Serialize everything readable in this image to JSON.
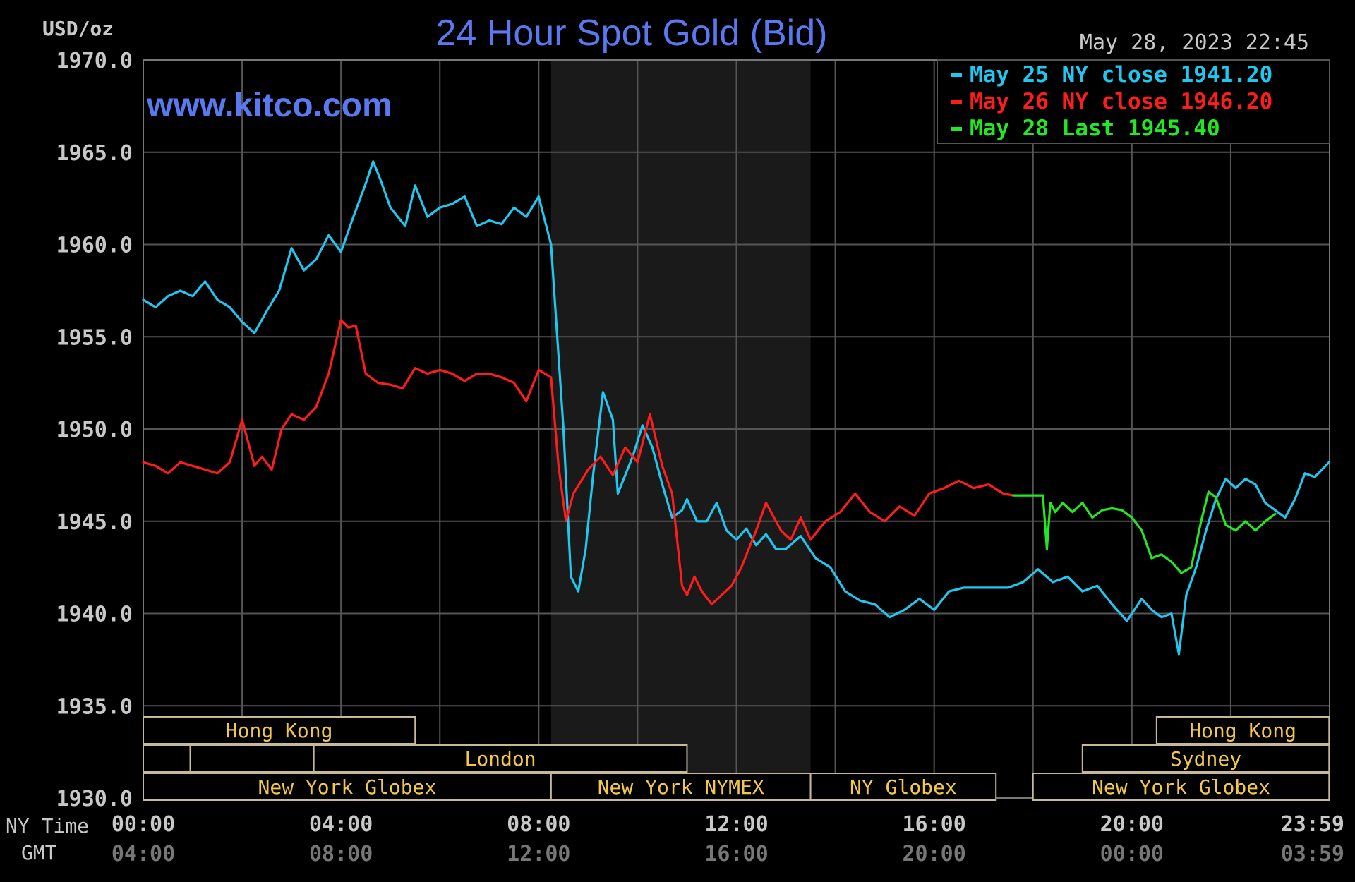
{
  "title": "24 Hour Spot Gold (Bid)",
  "unit_label": "USD/oz",
  "timestamp": "May 28, 2023 22:45",
  "watermark": "www.kitco.com",
  "colors": {
    "background": "#000000",
    "grid": "#555555",
    "title": "#5a78f0",
    "axis_text": "#c8c8c8",
    "gmt_text": "#777777",
    "session_text": "#f2c84b",
    "session_border": "#c8b89a",
    "ny_session_shade": "#1a1a1a",
    "series_may25": "#1fc8f0",
    "series_may26": "#ff1c1c",
    "series_may28": "#22e822"
  },
  "chart_data": {
    "type": "line",
    "title": "24 Hour Spot Gold (Bid)",
    "ylabel": "USD/oz",
    "ylim": [
      1930.0,
      1970.0
    ],
    "yticks": [
      "1970.0",
      "1965.0",
      "1960.0",
      "1955.0",
      "1950.0",
      "1945.0",
      "1940.0",
      "1935.0",
      "1930.0"
    ],
    "xlim_hours": [
      0,
      24
    ],
    "xticks": [
      {
        "ny": "00:00",
        "gmt": "04:00"
      },
      {
        "ny": "04:00",
        "gmt": "08:00"
      },
      {
        "ny": "08:00",
        "gmt": "12:00"
      },
      {
        "ny": "12:00",
        "gmt": "16:00"
      },
      {
        "ny": "16:00",
        "gmt": "20:00"
      },
      {
        "ny": "20:00",
        "gmt": "00:00"
      },
      {
        "ny": "23:59",
        "gmt": "03:59"
      }
    ],
    "x_row_labels": {
      "ny": "NY Time",
      "gmt": "GMT"
    },
    "grid": true,
    "legend_position": "top-right",
    "shaded_session_hours": [
      8.25,
      13.5
    ],
    "legend": [
      {
        "text": "May 25 NY close 1941.20",
        "color": "#1fc8f0"
      },
      {
        "text": "May 26 NY close 1946.20",
        "color": "#ff1c1c"
      },
      {
        "text": "May 28 Last 1945.40",
        "color": "#22e822"
      }
    ],
    "series": [
      {
        "name": "May 25",
        "color": "#1fc8f0",
        "x": [
          0,
          0.25,
          0.5,
          0.75,
          1.0,
          1.25,
          1.5,
          1.75,
          2.0,
          2.25,
          2.5,
          2.75,
          3.0,
          3.25,
          3.5,
          3.75,
          4.0,
          4.25,
          4.5,
          4.65,
          4.8,
          5.0,
          5.3,
          5.5,
          5.75,
          6.0,
          6.25,
          6.5,
          6.75,
          7.0,
          7.25,
          7.5,
          7.75,
          8.0,
          8.25,
          8.5,
          8.65,
          8.8,
          8.95,
          9.1,
          9.3,
          9.5,
          9.6,
          9.75,
          9.9,
          10.1,
          10.3,
          10.5,
          10.7,
          10.9,
          11.0,
          11.2,
          11.4,
          11.6,
          11.8,
          12.0,
          12.2,
          12.4,
          12.6,
          12.8,
          13.0,
          13.3,
          13.6,
          13.9,
          14.2,
          14.5,
          14.8,
          15.1,
          15.4,
          15.7,
          16.0,
          16.3,
          16.6,
          16.9,
          17.2,
          17.5,
          17.8,
          18.1,
          18.4,
          18.7,
          19.0,
          19.3,
          19.6,
          19.9,
          20.2,
          20.4,
          20.6,
          20.8,
          20.95,
          21.1,
          21.3,
          21.5,
          21.7,
          21.9,
          22.1,
          22.3,
          22.5,
          22.7,
          22.9,
          23.1,
          23.3,
          23.5,
          23.7,
          23.99
        ],
        "values": [
          1957.0,
          1956.6,
          1957.2,
          1957.5,
          1957.2,
          1958.0,
          1957.0,
          1956.6,
          1955.8,
          1955.2,
          1956.4,
          1957.5,
          1959.8,
          1958.6,
          1959.2,
          1960.5,
          1959.6,
          1961.5,
          1963.3,
          1964.5,
          1963.5,
          1962.0,
          1961.0,
          1963.2,
          1961.5,
          1962.0,
          1962.2,
          1962.6,
          1961.0,
          1961.3,
          1961.1,
          1962.0,
          1961.5,
          1962.6,
          1960.0,
          1950.0,
          1942.0,
          1941.2,
          1943.5,
          1947.5,
          1952.0,
          1950.5,
          1946.5,
          1947.5,
          1948.5,
          1950.2,
          1949.0,
          1947.0,
          1945.2,
          1945.6,
          1946.2,
          1945.0,
          1945.0,
          1946.0,
          1944.5,
          1944.0,
          1944.6,
          1943.7,
          1944.3,
          1943.5,
          1943.5,
          1944.2,
          1943.0,
          1942.5,
          1941.2,
          1940.7,
          1940.5,
          1939.8,
          1940.2,
          1940.8,
          1940.2,
          1941.2,
          1941.4,
          1941.4,
          1941.4,
          1941.4,
          1941.7,
          1942.4,
          1941.7,
          1942.0,
          1941.2,
          1941.5,
          1940.5,
          1939.6,
          1940.8,
          1940.2,
          1939.8,
          1940.0,
          1937.8,
          1941.0,
          1942.5,
          1944.5,
          1946.2,
          1947.3,
          1946.8,
          1947.3,
          1947.0,
          1946.0,
          1945.6,
          1945.2,
          1946.2,
          1947.6,
          1947.4,
          1948.2
        ]
      },
      {
        "name": "May 26",
        "color": "#ff1c1c",
        "x": [
          0,
          0.25,
          0.5,
          0.75,
          1.0,
          1.25,
          1.5,
          1.75,
          2.0,
          2.25,
          2.4,
          2.6,
          2.8,
          3.0,
          3.25,
          3.5,
          3.75,
          4.0,
          4.15,
          4.3,
          4.5,
          4.75,
          5.0,
          5.25,
          5.5,
          5.75,
          6.0,
          6.25,
          6.5,
          6.75,
          7.0,
          7.25,
          7.5,
          7.75,
          8.0,
          8.25,
          8.4,
          8.55,
          8.7,
          9.0,
          9.25,
          9.5,
          9.75,
          10.0,
          10.25,
          10.5,
          10.7,
          10.9,
          11.0,
          11.15,
          11.3,
          11.5,
          11.7,
          11.9,
          12.1,
          12.4,
          12.6,
          12.9,
          13.1,
          13.3,
          13.5,
          13.8,
          14.1,
          14.4,
          14.7,
          15.0,
          15.3,
          15.6,
          15.9,
          16.2,
          16.5,
          16.8,
          17.1,
          17.4,
          17.6
        ],
        "values": [
          1948.2,
          1948.0,
          1947.6,
          1948.2,
          1948.0,
          1947.8,
          1947.6,
          1948.2,
          1950.5,
          1948.0,
          1948.5,
          1947.8,
          1950.0,
          1950.8,
          1950.5,
          1951.2,
          1953.0,
          1955.9,
          1955.5,
          1955.6,
          1953.0,
          1952.5,
          1952.4,
          1952.2,
          1953.3,
          1953.0,
          1953.2,
          1953.0,
          1952.6,
          1953.0,
          1953.0,
          1952.8,
          1952.5,
          1951.5,
          1953.2,
          1952.8,
          1948.0,
          1945.0,
          1946.5,
          1947.8,
          1948.5,
          1947.5,
          1949.0,
          1948.2,
          1950.8,
          1948.0,
          1946.5,
          1941.5,
          1941.0,
          1942.0,
          1941.2,
          1940.5,
          1941.0,
          1941.5,
          1942.5,
          1944.5,
          1946.0,
          1944.5,
          1944.0,
          1945.2,
          1944.0,
          1945.0,
          1945.5,
          1946.5,
          1945.5,
          1945.0,
          1945.8,
          1945.3,
          1946.5,
          1946.8,
          1947.2,
          1946.8,
          1947.0,
          1946.5,
          1946.4
        ]
      },
      {
        "name": "May 28",
        "color": "#22e822",
        "x": [
          17.6,
          17.9,
          18.2,
          18.28,
          18.35,
          18.45,
          18.6,
          18.8,
          19.0,
          19.2,
          19.4,
          19.6,
          19.8,
          20.0,
          20.2,
          20.4,
          20.6,
          20.8,
          21.0,
          21.2,
          21.4,
          21.55,
          21.7,
          21.9,
          22.1,
          22.3,
          22.5,
          22.7,
          22.9
        ],
        "values": [
          1946.4,
          1946.4,
          1946.4,
          1943.5,
          1946.0,
          1945.5,
          1946.0,
          1945.5,
          1946.0,
          1945.2,
          1945.6,
          1945.7,
          1945.6,
          1945.2,
          1944.5,
          1943.0,
          1943.2,
          1942.8,
          1942.2,
          1942.5,
          1945.0,
          1946.6,
          1946.3,
          1944.8,
          1944.5,
          1945.0,
          1944.5,
          1945.0,
          1945.4
        ]
      }
    ]
  },
  "sessions": [
    {
      "label": "Hong Kong",
      "row": 0,
      "start": 0,
      "end": 5.5
    },
    {
      "label": "",
      "row": 1,
      "start": 0,
      "end": 0.95
    },
    {
      "label": "",
      "row": 1,
      "start": 0.95,
      "end": 3.45
    },
    {
      "label": "London",
      "row": 1,
      "start": 3.45,
      "end": 11.0
    },
    {
      "label": "New York Globex",
      "row": 2,
      "start": 0,
      "end": 8.25
    },
    {
      "label": "New York NYMEX",
      "row": 2,
      "start": 8.25,
      "end": 13.5
    },
    {
      "label": "NY Globex",
      "row": 2,
      "start": 13.5,
      "end": 17.25
    },
    {
      "label": "Hong Kong",
      "row": 0,
      "start": 20.5,
      "end": 23.99
    },
    {
      "label": "Sydney",
      "row": 1,
      "start": 19.0,
      "end": 23.99
    },
    {
      "label": "New York Globex",
      "row": 2,
      "start": 18.0,
      "end": 23.99
    }
  ]
}
